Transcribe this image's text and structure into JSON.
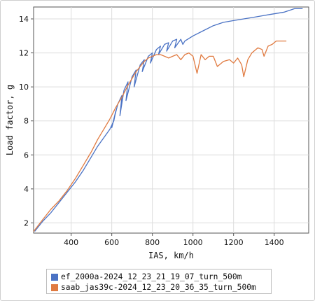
{
  "chart_data": {
    "type": "line",
    "title": "",
    "xlabel": "IAS, km/h",
    "ylabel": "Load factor, g",
    "xlim": [
      215,
      1570
    ],
    "ylim": [
      1.4,
      14.7
    ],
    "xticks": [
      400,
      600,
      800,
      1000,
      1200,
      1400
    ],
    "yticks": [
      2,
      4,
      6,
      8,
      10,
      12,
      14
    ],
    "grid": true,
    "legend_position": "bottom",
    "series": [
      {
        "name": "ef_2000a-2024_12_23_21_19_07_turn_500m",
        "color": "#4a72c4",
        "x": [
          220,
          260,
          300,
          340,
          380,
          420,
          460,
          500,
          530,
          560,
          590,
          610,
          620,
          600,
          630,
          650,
          640,
          660,
          680,
          670,
          700,
          720,
          710,
          740,
          760,
          750,
          780,
          800,
          790,
          820,
          840,
          830,
          860,
          880,
          870,
          900,
          920,
          910,
          940,
          950,
          960,
          1000,
          1050,
          1100,
          1150,
          1200,
          1250,
          1300,
          1350,
          1400,
          1450,
          1500,
          1540
        ],
        "y": [
          1.5,
          2.1,
          2.6,
          3.2,
          3.8,
          4.4,
          5.1,
          5.9,
          6.5,
          7.0,
          7.5,
          8.0,
          8.6,
          7.6,
          9.0,
          9.5,
          8.3,
          9.8,
          10.3,
          9.2,
          10.6,
          11.0,
          10.0,
          11.3,
          11.6,
          10.9,
          11.8,
          12.0,
          11.4,
          12.2,
          12.4,
          11.9,
          12.5,
          12.6,
          12.1,
          12.7,
          12.8,
          12.3,
          12.8,
          12.5,
          12.7,
          13.0,
          13.3,
          13.6,
          13.8,
          13.9,
          14.0,
          14.1,
          14.2,
          14.3,
          14.4,
          14.6,
          14.6
        ]
      },
      {
        "name": "saab_jas39c-2024_12_23_20_36_35_turn_500m",
        "color": "#e07a40",
        "x": [
          215,
          260,
          300,
          340,
          380,
          420,
          460,
          500,
          530,
          560,
          590,
          620,
          650,
          680,
          700,
          720,
          740,
          760,
          780,
          800,
          820,
          840,
          860,
          880,
          900,
          920,
          940,
          960,
          980,
          1000,
          1020,
          1040,
          1060,
          1080,
          1100,
          1120,
          1150,
          1180,
          1200,
          1220,
          1240,
          1250,
          1270,
          1290,
          1300,
          1320,
          1340,
          1350,
          1370,
          1390,
          1410,
          1430,
          1460
        ],
        "y": [
          1.5,
          2.2,
          2.8,
          3.3,
          3.9,
          4.6,
          5.4,
          6.2,
          6.9,
          7.5,
          8.1,
          8.8,
          9.4,
          10.1,
          10.5,
          10.9,
          11.2,
          11.5,
          11.7,
          11.8,
          11.9,
          11.9,
          11.8,
          11.7,
          11.8,
          11.9,
          11.6,
          11.9,
          12.0,
          11.8,
          10.8,
          11.9,
          11.6,
          11.8,
          11.8,
          11.2,
          11.5,
          11.6,
          11.4,
          11.7,
          11.3,
          10.6,
          11.6,
          12.0,
          12.1,
          12.3,
          12.2,
          11.8,
          12.4,
          12.5,
          12.7,
          12.7,
          12.7
        ]
      }
    ]
  }
}
